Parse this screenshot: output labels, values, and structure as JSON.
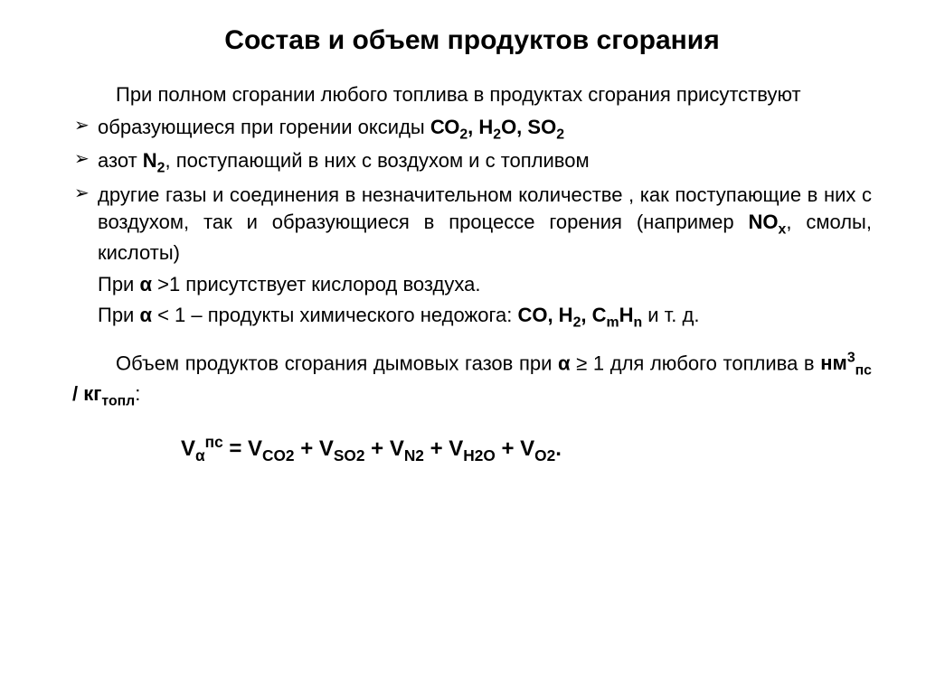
{
  "title": "Состав и объем продуктов сгорания",
  "intro": "При полном сгорании любого топлива в продуктах сгорания присутствуют",
  "bullets": {
    "b1_pre": "образующиеся при горении оксиды ",
    "b1_chem": "СО<span class=\"sub\">2</span>, Н<span class=\"sub\">2</span>О, SO<span class=\"sub\">2</span>",
    "b2_pre": "азот ",
    "b2_chem": "N<span class=\"sub\">2</span>",
    "b2_post": ", поступающий в них с воздухом и с топливом",
    "b3_pre": "другие газы и соединения в незначительном количестве , как поступающие в них с воздухом, так и образующиеся в процессе горения (например ",
    "b3_chem": "NO<span class=\"sub\">x</span>",
    "b3_post": ", смолы, кислоты)"
  },
  "alpha_gt": {
    "pre": "При ",
    "sym": "α",
    "cond": " >1 присутствует кислород воздуха."
  },
  "alpha_lt": {
    "pre": "При ",
    "sym": "α",
    "cond": " < 1 – продукты химического недожога: ",
    "chem": "CO, H<span class=\"sub\">2</span>, C<span class=\"sub\">m</span>H<span class=\"sub\">n</span>",
    "post": " и т. д."
  },
  "volume_para": {
    "pre": "Объем продуктов сгорания дымовых газов при ",
    "sym": "α",
    "cond": " ≥ 1 для любого топлива в ",
    "unit": "нм<span class=\"sup\">3</span><span class=\"sub\">пс</span> / кг<span class=\"sub\">топл</span>",
    "post": ":"
  },
  "formula": "V<span class=\"sub\">α</span><span class=\"sup\">пс</span> = V<span class=\"sub\">CO2</span> + V<span class=\"sub\">SO2</span> + V<span class=\"sub\">N2</span> + V<span class=\"sub\">H2O</span> + V<span class=\"sub\">O2</span>.",
  "style": {
    "bg": "#ffffff",
    "text_color": "#000000",
    "title_fontsize": 30,
    "body_fontsize": 22,
    "formula_fontsize": 24,
    "font_family": "Arial"
  }
}
